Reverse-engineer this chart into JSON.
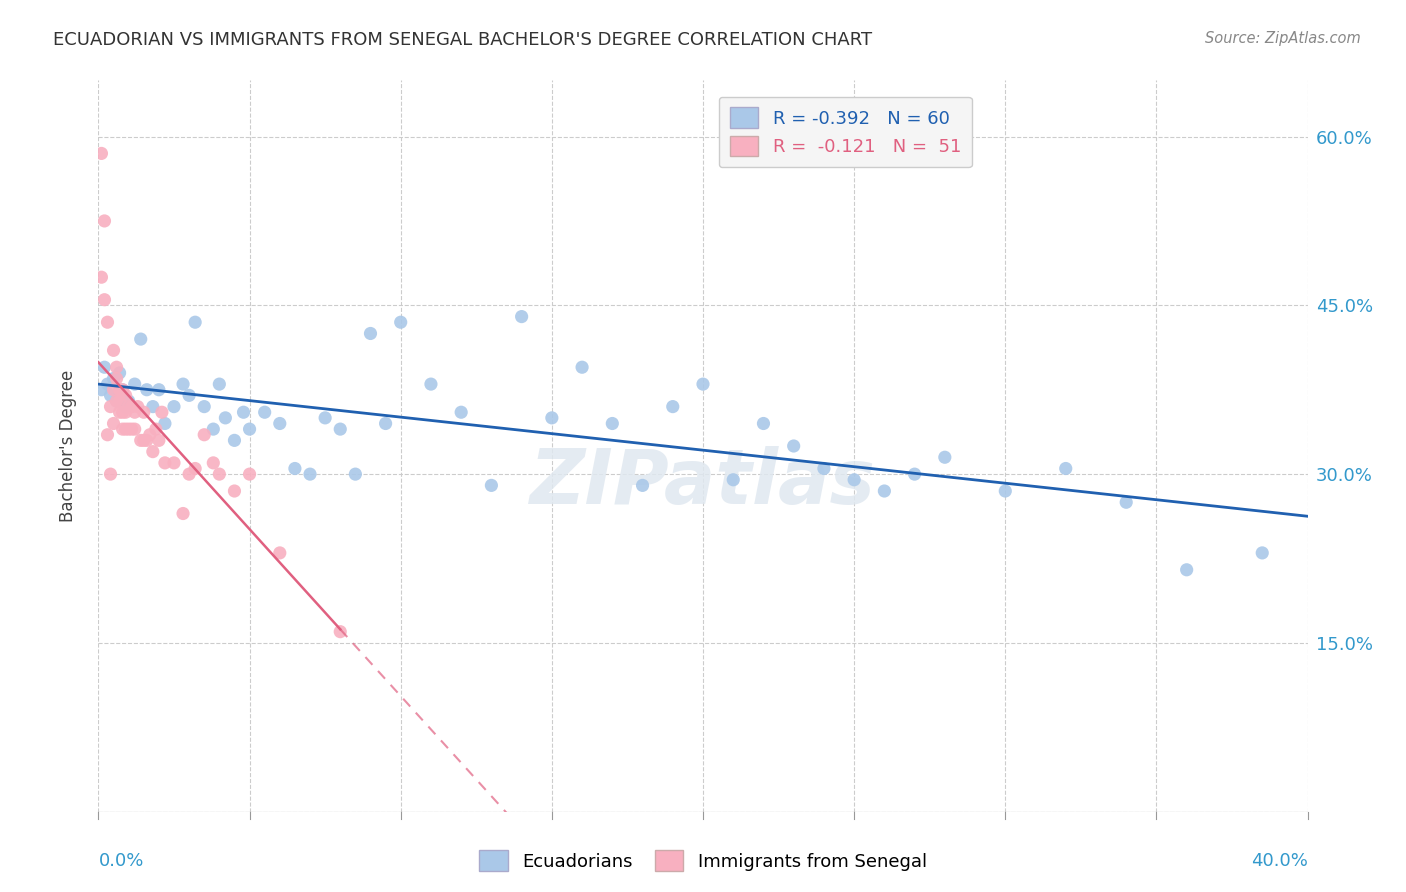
{
  "title": "ECUADORIAN VS IMMIGRANTS FROM SENEGAL BACHELOR'S DEGREE CORRELATION CHART",
  "source": "Source: ZipAtlas.com",
  "ylabel_text": "Bachelor's Degree",
  "xlim": [
    0.0,
    0.4
  ],
  "ylim": [
    0.0,
    0.65
  ],
  "yticks": [
    0.0,
    0.15,
    0.3,
    0.45,
    0.6
  ],
  "ytick_labels": [
    "",
    "15.0%",
    "30.0%",
    "45.0%",
    "60.0%"
  ],
  "xtick_labels": [
    "0.0%",
    "40.0%"
  ],
  "R_blue": -0.392,
  "N_blue": 60,
  "R_pink": -0.121,
  "N_pink": 51,
  "blue_dot_color": "#aac8e8",
  "blue_line_color": "#2060b0",
  "pink_dot_color": "#f8b0c0",
  "pink_line_color": "#e06080",
  "watermark": "ZIPatlas",
  "blue_dots_x": [
    0.001,
    0.002,
    0.003,
    0.004,
    0.005,
    0.006,
    0.007,
    0.008,
    0.009,
    0.01,
    0.012,
    0.014,
    0.016,
    0.018,
    0.02,
    0.022,
    0.025,
    0.028,
    0.03,
    0.032,
    0.035,
    0.038,
    0.04,
    0.042,
    0.045,
    0.048,
    0.05,
    0.055,
    0.06,
    0.065,
    0.07,
    0.075,
    0.08,
    0.085,
    0.09,
    0.095,
    0.1,
    0.11,
    0.12,
    0.13,
    0.14,
    0.15,
    0.16,
    0.17,
    0.18,
    0.19,
    0.2,
    0.21,
    0.22,
    0.23,
    0.24,
    0.25,
    0.26,
    0.27,
    0.28,
    0.3,
    0.32,
    0.34,
    0.36,
    0.385
  ],
  "blue_dots_y": [
    0.375,
    0.395,
    0.38,
    0.37,
    0.385,
    0.365,
    0.39,
    0.375,
    0.36,
    0.365,
    0.38,
    0.42,
    0.375,
    0.36,
    0.375,
    0.345,
    0.36,
    0.38,
    0.37,
    0.435,
    0.36,
    0.34,
    0.38,
    0.35,
    0.33,
    0.355,
    0.34,
    0.355,
    0.345,
    0.305,
    0.3,
    0.35,
    0.34,
    0.3,
    0.425,
    0.345,
    0.435,
    0.38,
    0.355,
    0.29,
    0.44,
    0.35,
    0.395,
    0.345,
    0.29,
    0.36,
    0.38,
    0.295,
    0.345,
    0.325,
    0.305,
    0.295,
    0.285,
    0.3,
    0.315,
    0.285,
    0.305,
    0.275,
    0.215,
    0.23
  ],
  "pink_dots_x": [
    0.001,
    0.001,
    0.002,
    0.002,
    0.003,
    0.003,
    0.004,
    0.004,
    0.005,
    0.005,
    0.005,
    0.006,
    0.006,
    0.006,
    0.007,
    0.007,
    0.007,
    0.008,
    0.008,
    0.008,
    0.009,
    0.009,
    0.009,
    0.01,
    0.01,
    0.011,
    0.011,
    0.012,
    0.012,
    0.013,
    0.014,
    0.015,
    0.015,
    0.016,
    0.017,
    0.018,
    0.019,
    0.02,
    0.021,
    0.022,
    0.025,
    0.028,
    0.03,
    0.032,
    0.035,
    0.038,
    0.04,
    0.045,
    0.05,
    0.06,
    0.08
  ],
  "pink_dots_y": [
    0.585,
    0.475,
    0.525,
    0.455,
    0.435,
    0.335,
    0.36,
    0.3,
    0.345,
    0.375,
    0.41,
    0.395,
    0.365,
    0.385,
    0.365,
    0.355,
    0.375,
    0.34,
    0.375,
    0.355,
    0.355,
    0.34,
    0.37,
    0.34,
    0.36,
    0.34,
    0.36,
    0.355,
    0.34,
    0.36,
    0.33,
    0.355,
    0.33,
    0.33,
    0.335,
    0.32,
    0.34,
    0.33,
    0.355,
    0.31,
    0.31,
    0.265,
    0.3,
    0.305,
    0.335,
    0.31,
    0.3,
    0.285,
    0.3,
    0.23,
    0.16
  ],
  "grid_color": "#cccccc",
  "background_color": "#ffffff",
  "legend_box_color": "#f5f5f5",
  "legend_border_color": "#cccccc"
}
